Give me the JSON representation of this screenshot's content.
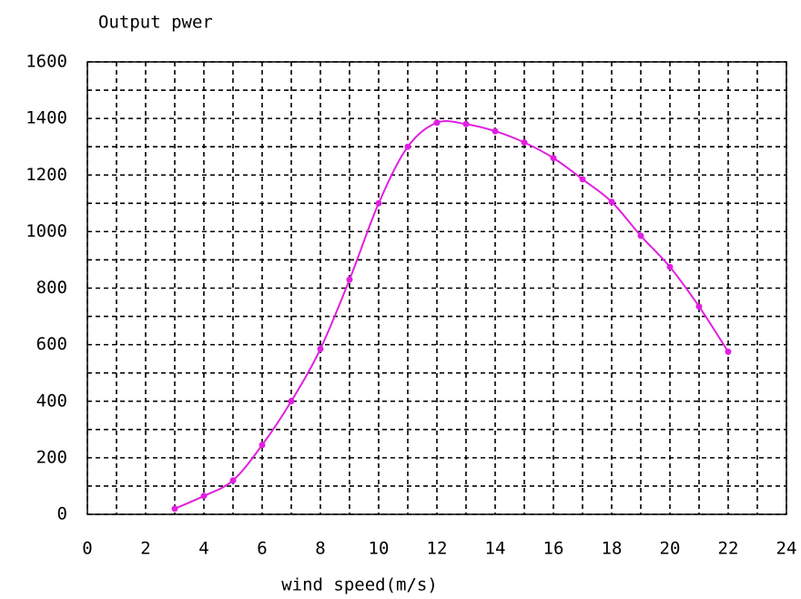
{
  "chart_data": {
    "type": "line",
    "title": "Output pwer",
    "x_label": "wind speed(m/s)",
    "x": [
      3,
      4,
      5,
      6,
      7,
      8,
      9,
      10,
      11,
      12,
      13,
      14,
      15,
      16,
      17,
      18,
      19,
      20,
      21,
      22
    ],
    "series": [
      {
        "name": null,
        "color": "#e020e0",
        "values": [
          20,
          65,
          120,
          245,
          400,
          585,
          830,
          1100,
          1300,
          1385,
          1380,
          1355,
          1315,
          1260,
          1185,
          1105,
          985,
          875,
          735,
          575
        ]
      }
    ],
    "xlim": [
      0,
      24
    ],
    "xticks": [
      0,
      2,
      4,
      6,
      8,
      10,
      12,
      14,
      16,
      18,
      20,
      22,
      24
    ],
    "ylim": [
      0,
      1600
    ],
    "yticks": [
      0,
      200,
      400,
      600,
      800,
      1000,
      1200,
      1400,
      1600
    ],
    "grid": true
  }
}
